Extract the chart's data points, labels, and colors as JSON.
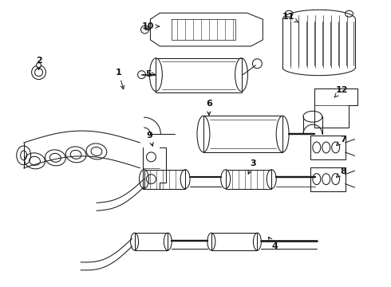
{
  "bg_color": "#ffffff",
  "line_color": "#1a1a1a",
  "label_color": "#111111",
  "figsize": [
    4.9,
    3.6
  ],
  "dpi": 100,
  "lw": 0.75
}
